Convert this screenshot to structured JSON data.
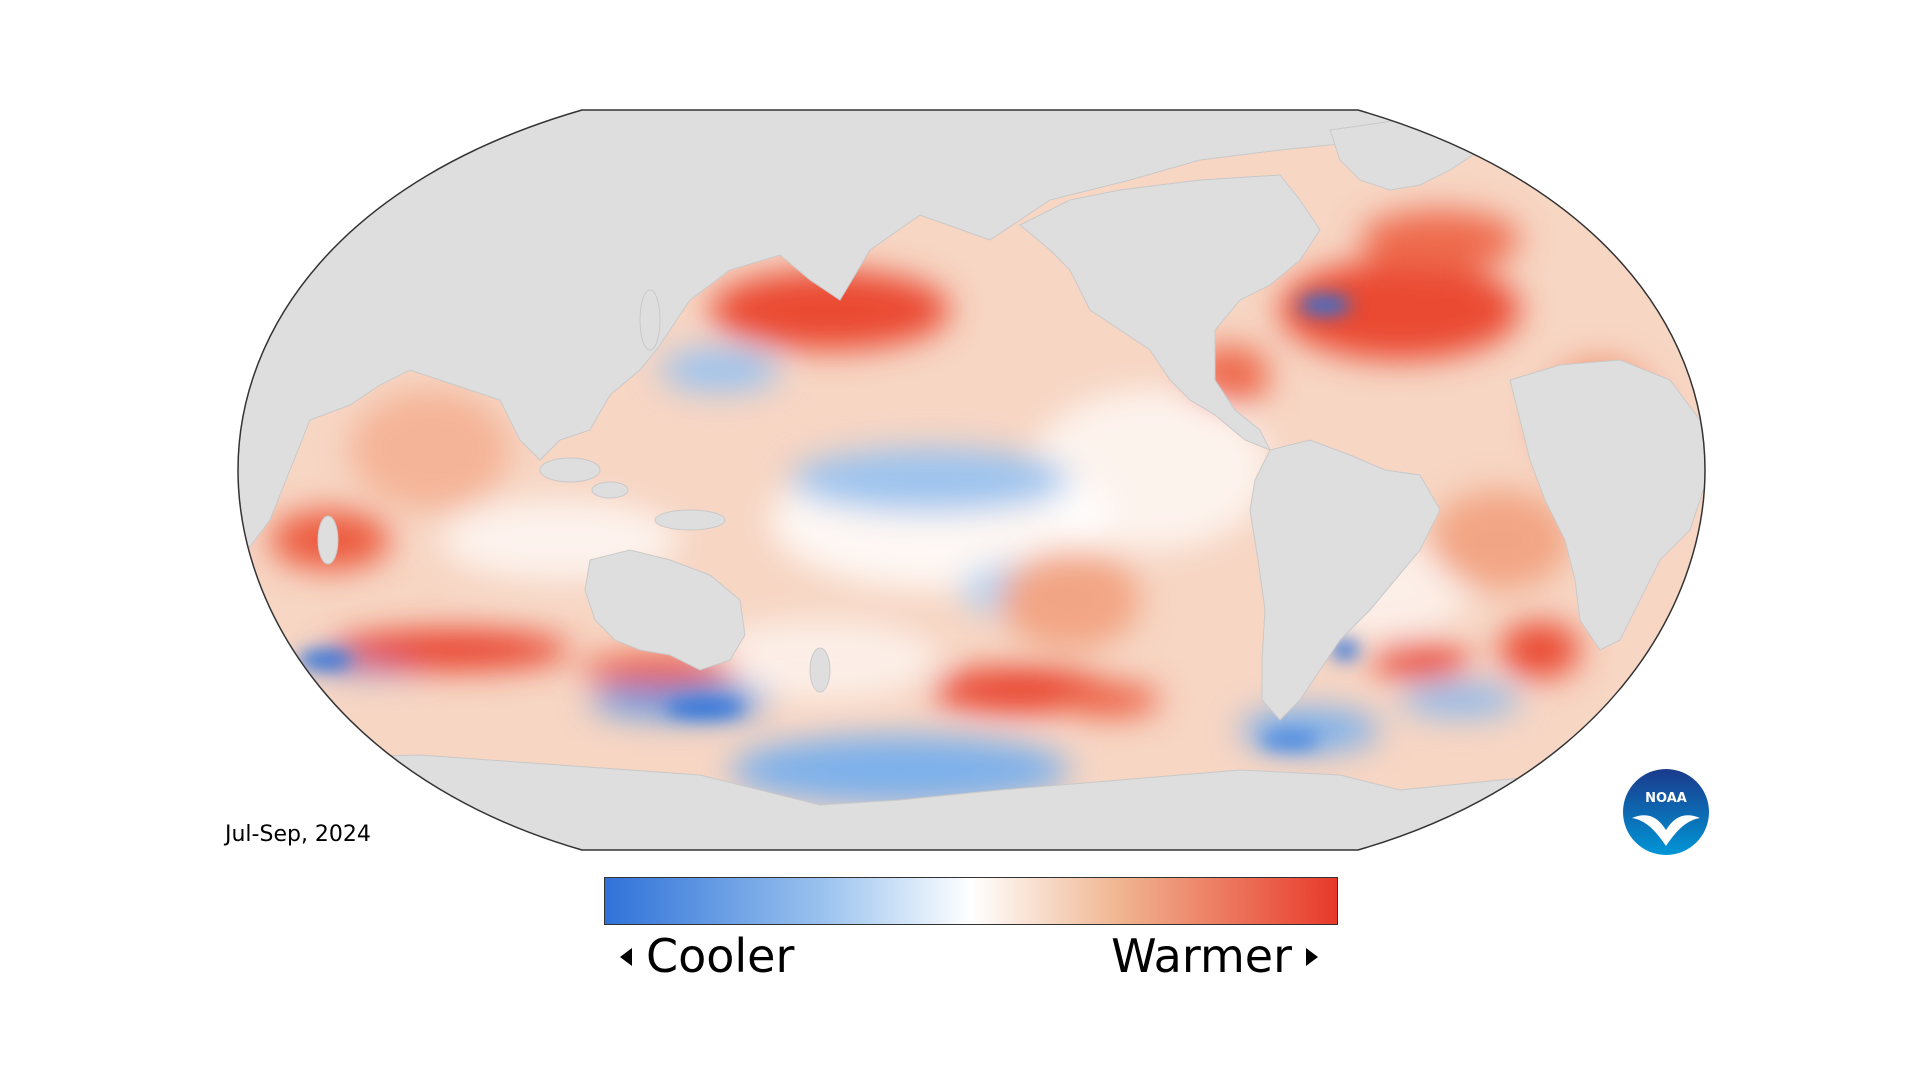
{
  "map": {
    "period": "Jul-Sep, 2024",
    "colors": {
      "cool": "#2f72d8",
      "neutral": "#ffffff",
      "warm": "#e8392a",
      "land": "#dedede",
      "border": "#333333"
    }
  },
  "legend": {
    "cooler_label": "Cooler",
    "warmer_label": "Warmer"
  },
  "logo": {
    "text": "NOAA"
  }
}
